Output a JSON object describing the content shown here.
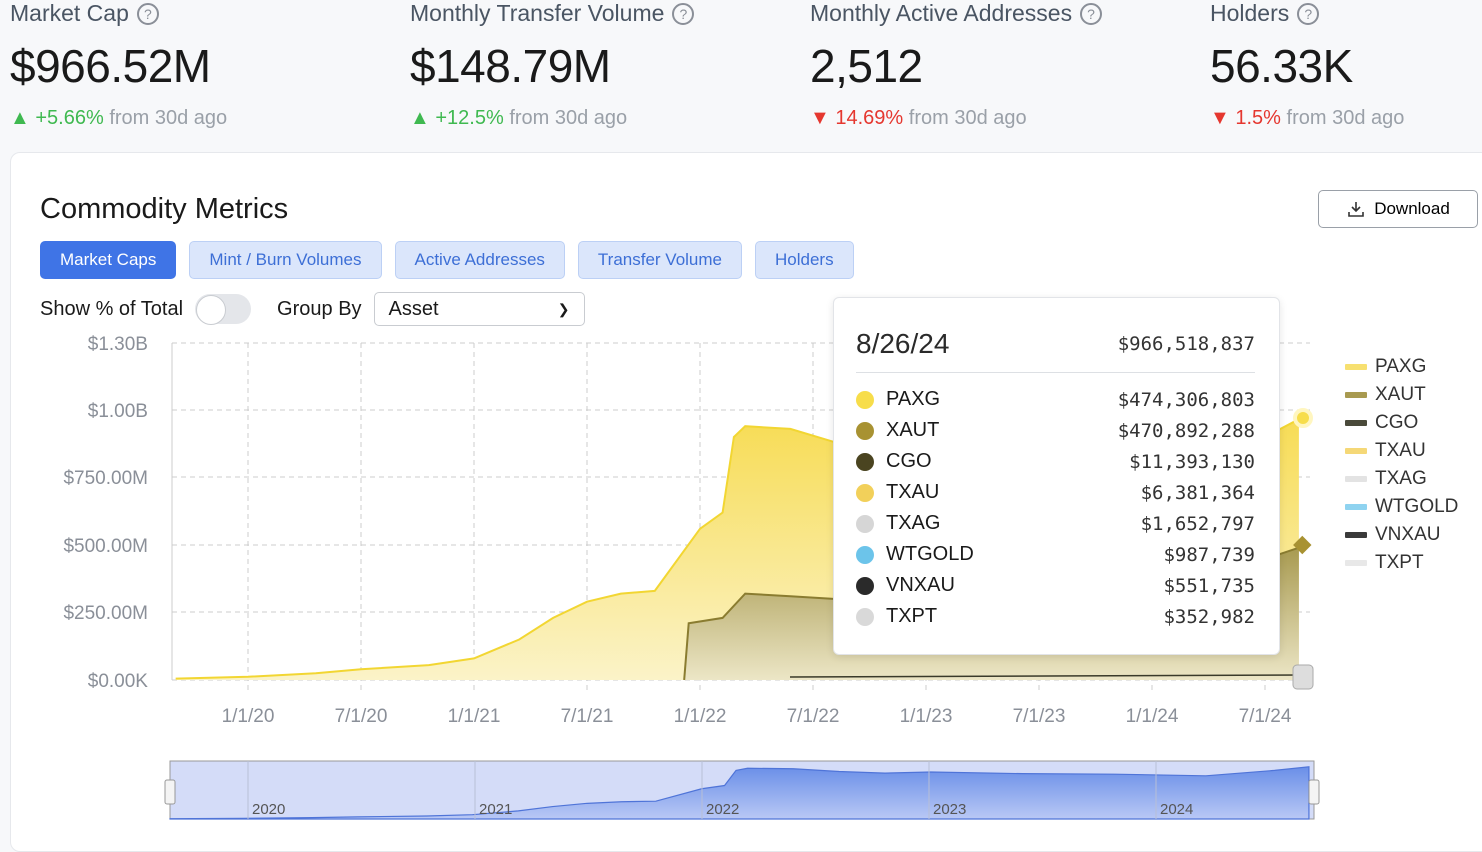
{
  "stats": [
    {
      "label": "Market Cap",
      "value": "$966.52M",
      "change": "+5.66%",
      "dir": "up",
      "suffix": "from 30d ago"
    },
    {
      "label": "Monthly Transfer Volume",
      "value": "$148.79M",
      "change": "+12.5%",
      "dir": "up",
      "suffix": "from 30d ago"
    },
    {
      "label": "Monthly Active Addresses",
      "value": "2,512",
      "change": "14.69%",
      "dir": "down",
      "suffix": "from 30d ago"
    },
    {
      "label": "Holders",
      "value": "56.33K",
      "change": "1.5%",
      "dir": "down",
      "suffix": "from 30d ago"
    }
  ],
  "help_glyph": "?",
  "card": {
    "title": "Commodity Metrics",
    "download": "Download",
    "tabs": [
      "Market Caps",
      "Mint / Burn Volumes",
      "Active Addresses",
      "Transfer Volume",
      "Holders"
    ],
    "show_pct_label": "Show % of Total",
    "show_pct_on": false,
    "group_by_label": "Group By",
    "group_by_value": "Asset"
  },
  "tooltip": {
    "date": "8/26/24",
    "total": "$966,518,837",
    "rows": [
      {
        "name": "PAXG",
        "value": "$474,306,803",
        "color": "#f7dd4a"
      },
      {
        "name": "XAUT",
        "value": "$470,892,288",
        "color": "#a89232"
      },
      {
        "name": "CGO",
        "value": "$11,393,130",
        "color": "#4a4420"
      },
      {
        "name": "TXAU",
        "value": "$6,381,364",
        "color": "#f2d05a"
      },
      {
        "name": "TXAG",
        "value": "$1,652,797",
        "color": "#d6d6d6"
      },
      {
        "name": "WTGOLD",
        "value": "$987,739",
        "color": "#6cc4ea"
      },
      {
        "name": "VNXAU",
        "value": "$551,735",
        "color": "#2a2a2a"
      },
      {
        "name": "TXPT",
        "value": "$352,982",
        "color": "#d9d9d9"
      }
    ]
  },
  "chart_data": {
    "type": "area",
    "title": "Commodity Metrics",
    "stacked": true,
    "ylabel": "",
    "xlabel": "",
    "y_ticks": [
      "$0.00K",
      "$250.00M",
      "$500.00M",
      "$750.00M",
      "$1.00B",
      "$1.30B"
    ],
    "x_ticks": [
      "1/1/20",
      "7/1/20",
      "1/1/21",
      "7/1/21",
      "1/1/22",
      "7/1/22",
      "1/1/23",
      "7/1/23",
      "1/1/24",
      "7/1/24"
    ],
    "navigator_ticks": [
      "2020",
      "2021",
      "2022",
      "2023",
      "2024"
    ],
    "legend": [
      "PAXG",
      "XAUT",
      "CGO",
      "TXAU",
      "TXAG",
      "WTGOLD",
      "VNXAU",
      "TXPT"
    ],
    "legend_position": "right",
    "total_series_musd": {
      "x": [
        2019.68,
        2020.0,
        2020.3,
        2020.5,
        2020.8,
        2021.0,
        2021.2,
        2021.35,
        2021.5,
        2021.65,
        2021.8,
        2022.0,
        2022.1,
        2022.15,
        2022.2,
        2022.4,
        2022.6,
        2022.8,
        2023.0,
        2023.4,
        2023.8,
        2024.2,
        2024.5,
        2024.65
      ],
      "y": [
        5,
        12,
        25,
        40,
        55,
        80,
        150,
        230,
        290,
        320,
        330,
        560,
        620,
        900,
        940,
        930,
        880,
        850,
        870,
        840,
        830,
        800,
        900,
        966
      ]
    },
    "xaut_series_musd": {
      "x": [
        2021.93,
        2021.95,
        2022.1,
        2022.2,
        2022.4,
        2022.6,
        2023.0,
        2023.6,
        2024.0,
        2024.4,
        2024.65
      ],
      "y": [
        0,
        210,
        230,
        320,
        310,
        300,
        320,
        330,
        340,
        420,
        490
      ]
    }
  }
}
